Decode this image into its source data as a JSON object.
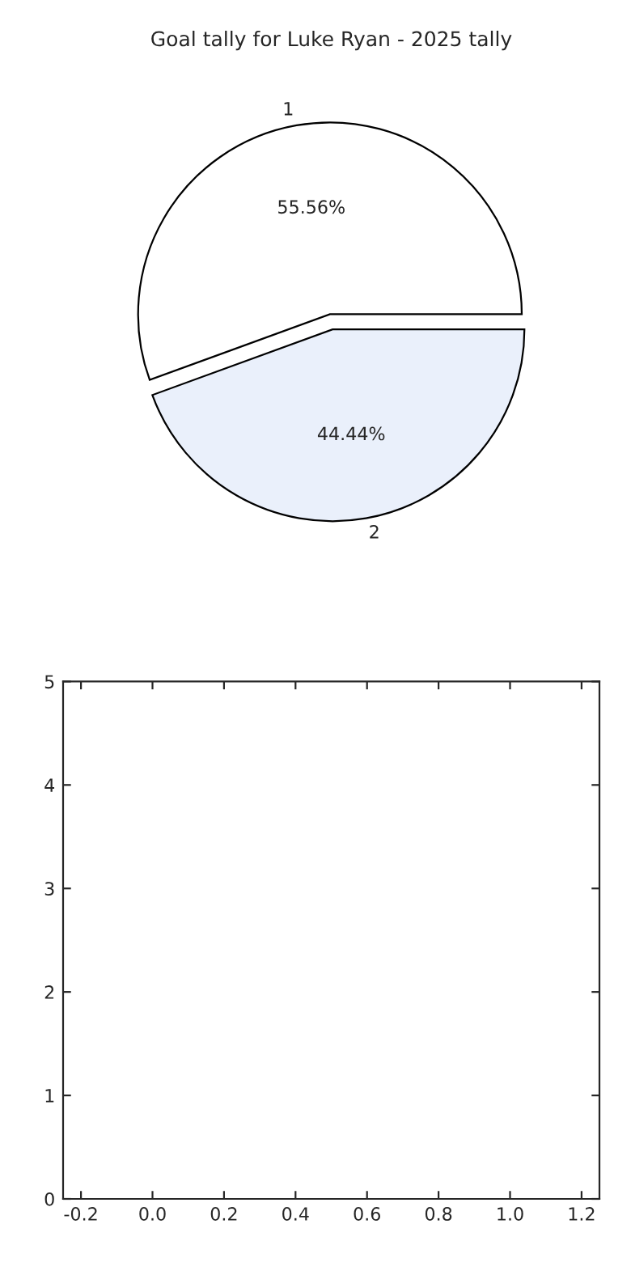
{
  "chart_data": [
    {
      "type": "pie",
      "title": "Goal tally for Luke Ryan - 2025 tally",
      "categories": [
        "1",
        "2"
      ],
      "values": [
        55.56,
        44.44
      ],
      "colors": [
        "#ffffff",
        "#eaf0fb"
      ],
      "value_labels": [
        "55.56%",
        "44.44%"
      ]
    },
    {
      "type": "scatter",
      "xlim": [
        -0.25,
        1.25
      ],
      "ylim": [
        0,
        5
      ],
      "xticks": [
        -0.2,
        {
          "value": 0,
          "label": "0.0"
        },
        0.2,
        0.4,
        0.6,
        0.8,
        {
          "value": 1,
          "label": "1.0"
        },
        1.2
      ],
      "yticks": [
        0,
        1,
        2,
        3,
        4,
        5
      ]
    }
  ]
}
